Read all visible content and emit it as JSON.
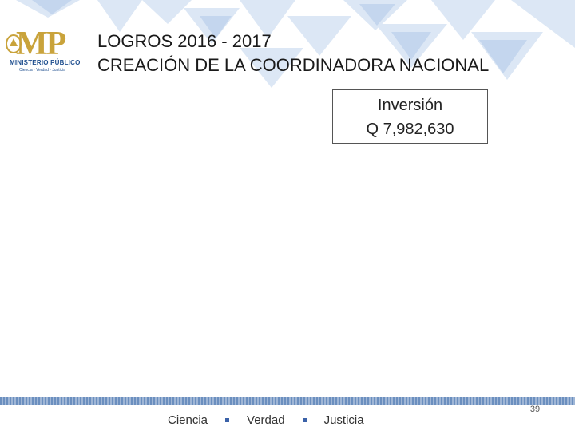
{
  "logo": {
    "initials": "MP",
    "name": "MINISTERIO PÚBLICO",
    "tagline": "Ciencia · Verdad · Justicia"
  },
  "title": {
    "line1": "LOGROS 2016 - 2017",
    "line2": "CREACIÓN DE LA COORDINADORA NACIONAL"
  },
  "investment": {
    "label": "Inversión",
    "amount": "Q 7,982,630"
  },
  "footer": {
    "words": [
      "Ciencia",
      "Verdad",
      "Justicia"
    ],
    "page_number": "39"
  },
  "colors": {
    "gold": "#c9a33b",
    "blue": "#1f4f8f",
    "pattern": "#d6e3f3"
  }
}
